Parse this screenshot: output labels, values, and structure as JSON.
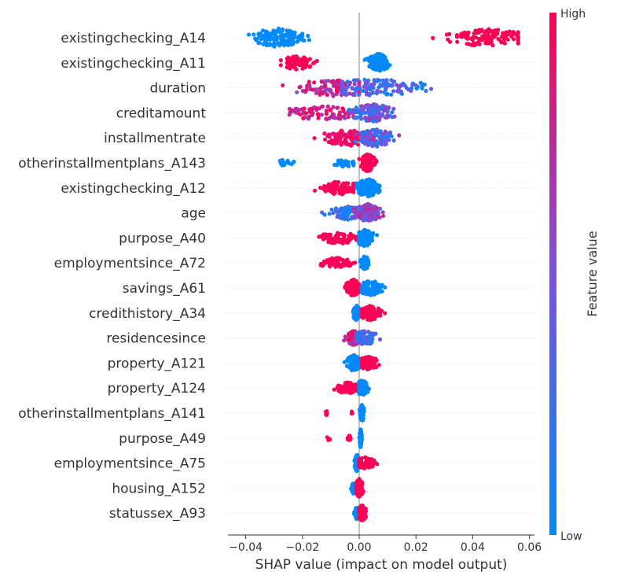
{
  "chart_data": {
    "type": "scatter",
    "xlabel": "SHAP value (impact on model output)",
    "xlim": [
      -0.045,
      0.06
    ],
    "x_ticks": [
      -0.04,
      -0.02,
      0.0,
      0.02,
      0.04,
      0.06
    ],
    "x_tick_labels": [
      "−0.04",
      "−0.02",
      "0.00",
      "0.02",
      "0.04",
      "0.06"
    ],
    "colorbar": {
      "label": "Feature value",
      "high_label": "High",
      "low_label": "Low",
      "low_color": "#008bfb",
      "high_color": "#ff0051"
    },
    "features": [
      {
        "name": "existingchecking_A14",
        "clusters": [
          {
            "min": -0.04,
            "max": -0.014,
            "center": -0.029,
            "count": 140,
            "value_lo": 0.0,
            "value_hi": 0.02
          },
          {
            "min": 0.022,
            "max": 0.056,
            "center": 0.045,
            "count": 120,
            "value_lo": 0.98,
            "value_hi": 1.0
          }
        ]
      },
      {
        "name": "existingchecking_A11",
        "clusters": [
          {
            "min": -0.031,
            "max": -0.014,
            "center": -0.022,
            "count": 85,
            "value_lo": 0.98,
            "value_hi": 1.0
          },
          {
            "min": 0.001,
            "max": 0.012,
            "center": 0.007,
            "count": 150,
            "value_lo": 0.0,
            "value_hi": 0.02
          }
        ]
      },
      {
        "name": "duration",
        "clusters": [
          {
            "min": -0.032,
            "max": 0.0,
            "center": -0.008,
            "count": 110,
            "value_lo": 0.55,
            "value_hi": 1.0
          },
          {
            "min": -0.006,
            "max": 0.032,
            "center": 0.005,
            "count": 130,
            "value_lo": 0.0,
            "value_hi": 0.55
          }
        ]
      },
      {
        "name": "creditamount",
        "clusters": [
          {
            "min": -0.035,
            "max": -0.002,
            "center": -0.012,
            "count": 90,
            "value_lo": 0.6,
            "value_hi": 1.0
          },
          {
            "min": -0.006,
            "max": 0.014,
            "center": 0.005,
            "count": 140,
            "value_lo": 0.0,
            "value_hi": 0.7
          }
        ]
      },
      {
        "name": "installmentrate",
        "clusters": [
          {
            "min": -0.017,
            "max": 0.002,
            "center": -0.004,
            "count": 110,
            "value_lo": 0.85,
            "value_hi": 1.0
          },
          {
            "min": -0.002,
            "max": 0.016,
            "center": 0.006,
            "count": 120,
            "value_lo": 0.0,
            "value_hi": 0.75
          }
        ]
      },
      {
        "name": "otherinstallmentplans_A143",
        "clusters": [
          {
            "min": -0.03,
            "max": -0.021,
            "center": -0.026,
            "count": 18,
            "value_lo": 0.0,
            "value_hi": 0.03
          },
          {
            "min": -0.012,
            "max": -0.002,
            "center": -0.005,
            "count": 30,
            "value_lo": 0.0,
            "value_hi": 0.03
          },
          {
            "min": 0.0,
            "max": 0.007,
            "center": 0.003,
            "count": 120,
            "value_lo": 0.97,
            "value_hi": 1.0
          }
        ]
      },
      {
        "name": "existingchecking_A12",
        "clusters": [
          {
            "min": -0.018,
            "max": -0.002,
            "center": -0.007,
            "count": 80,
            "value_lo": 0.97,
            "value_hi": 1.0
          },
          {
            "min": -0.001,
            "max": 0.009,
            "center": 0.003,
            "count": 140,
            "value_lo": 0.0,
            "value_hi": 0.03
          }
        ]
      },
      {
        "name": "age",
        "clusters": [
          {
            "min": -0.014,
            "max": 0.0,
            "center": -0.004,
            "count": 80,
            "value_lo": 0.0,
            "value_hi": 0.35
          },
          {
            "min": -0.002,
            "max": 0.01,
            "center": 0.003,
            "count": 120,
            "value_lo": 0.3,
            "value_hi": 0.85
          }
        ]
      },
      {
        "name": "purpose_A40",
        "clusters": [
          {
            "min": -0.018,
            "max": -0.001,
            "center": -0.007,
            "count": 70,
            "value_lo": 0.97,
            "value_hi": 1.0
          },
          {
            "min": 0.0,
            "max": 0.007,
            "center": 0.002,
            "count": 110,
            "value_lo": 0.0,
            "value_hi": 0.03
          }
        ]
      },
      {
        "name": "employmentsince_A72",
        "clusters": [
          {
            "min": -0.017,
            "max": -0.001,
            "center": -0.008,
            "count": 55,
            "value_lo": 0.97,
            "value_hi": 1.0
          },
          {
            "min": 0.0,
            "max": 0.004,
            "center": 0.002,
            "count": 90,
            "value_lo": 0.0,
            "value_hi": 0.03
          }
        ]
      },
      {
        "name": "savings_A61",
        "clusters": [
          {
            "min": -0.006,
            "max": 0.0,
            "center": -0.002,
            "count": 110,
            "value_lo": 0.97,
            "value_hi": 1.0
          },
          {
            "min": 0.001,
            "max": 0.01,
            "center": 0.004,
            "count": 100,
            "value_lo": 0.0,
            "value_hi": 0.03
          }
        ]
      },
      {
        "name": "credithistory_A34",
        "clusters": [
          {
            "min": -0.003,
            "max": 0.0,
            "center": -0.001,
            "count": 100,
            "value_lo": 0.0,
            "value_hi": 0.03
          },
          {
            "min": 0.001,
            "max": 0.011,
            "center": 0.004,
            "count": 90,
            "value_lo": 0.97,
            "value_hi": 1.0
          }
        ]
      },
      {
        "name": "residencesince",
        "clusters": [
          {
            "min": -0.006,
            "max": 0.0,
            "center": -0.002,
            "count": 90,
            "value_lo": 0.6,
            "value_hi": 1.0
          },
          {
            "min": -0.001,
            "max": 0.009,
            "center": 0.002,
            "count": 90,
            "value_lo": 0.0,
            "value_hi": 0.5
          }
        ]
      },
      {
        "name": "property_A121",
        "clusters": [
          {
            "min": -0.006,
            "max": 0.0,
            "center": -0.002,
            "count": 110,
            "value_lo": 0.0,
            "value_hi": 0.03
          },
          {
            "min": 0.001,
            "max": 0.009,
            "center": 0.003,
            "count": 80,
            "value_lo": 0.97,
            "value_hi": 1.0
          }
        ]
      },
      {
        "name": "property_A124",
        "clusters": [
          {
            "min": -0.011,
            "max": -0.001,
            "center": -0.004,
            "count": 60,
            "value_lo": 0.97,
            "value_hi": 1.0
          },
          {
            "min": 0.0,
            "max": 0.004,
            "center": 0.001,
            "count": 110,
            "value_lo": 0.0,
            "value_hi": 0.03
          }
        ]
      },
      {
        "name": "otherinstallmentplans_A141",
        "clusters": [
          {
            "min": -0.012,
            "max": -0.011,
            "center": -0.0115,
            "count": 6,
            "value_lo": 0.97,
            "value_hi": 1.0
          },
          {
            "min": -0.003,
            "max": -0.002,
            "center": -0.0025,
            "count": 6,
            "value_lo": 0.97,
            "value_hi": 1.0
          },
          {
            "min": 0.0,
            "max": 0.002,
            "center": 0.001,
            "count": 120,
            "value_lo": 0.0,
            "value_hi": 0.03
          }
        ]
      },
      {
        "name": "purpose_A49",
        "clusters": [
          {
            "min": -0.012,
            "max": -0.009,
            "center": -0.0105,
            "count": 8,
            "value_lo": 0.97,
            "value_hi": 1.0
          },
          {
            "min": -0.005,
            "max": -0.002,
            "center": -0.0035,
            "count": 10,
            "value_lo": 0.97,
            "value_hi": 1.0
          },
          {
            "min": 0.0,
            "max": 0.001,
            "center": 0.0005,
            "count": 120,
            "value_lo": 0.0,
            "value_hi": 0.03
          }
        ]
      },
      {
        "name": "employmentsince_A75",
        "clusters": [
          {
            "min": -0.002,
            "max": 0.0,
            "center": -0.0008,
            "count": 110,
            "value_lo": 0.0,
            "value_hi": 0.03
          },
          {
            "min": 0.0,
            "max": 0.007,
            "center": 0.002,
            "count": 70,
            "value_lo": 0.97,
            "value_hi": 1.0
          }
        ]
      },
      {
        "name": "housing_A152",
        "clusters": [
          {
            "min": -0.003,
            "max": -0.001,
            "center": -0.002,
            "count": 60,
            "value_lo": 0.0,
            "value_hi": 0.03
          },
          {
            "min": -0.001,
            "max": 0.002,
            "center": 0.0,
            "count": 130,
            "value_lo": 0.97,
            "value_hi": 1.0
          }
        ]
      },
      {
        "name": "statussex_A93",
        "clusters": [
          {
            "min": -0.002,
            "max": 0.0,
            "center": -0.0008,
            "count": 80,
            "value_lo": 0.0,
            "value_hi": 0.03
          },
          {
            "min": 0.0,
            "max": 0.003,
            "center": 0.001,
            "count": 110,
            "value_lo": 0.97,
            "value_hi": 1.0
          }
        ]
      }
    ]
  }
}
